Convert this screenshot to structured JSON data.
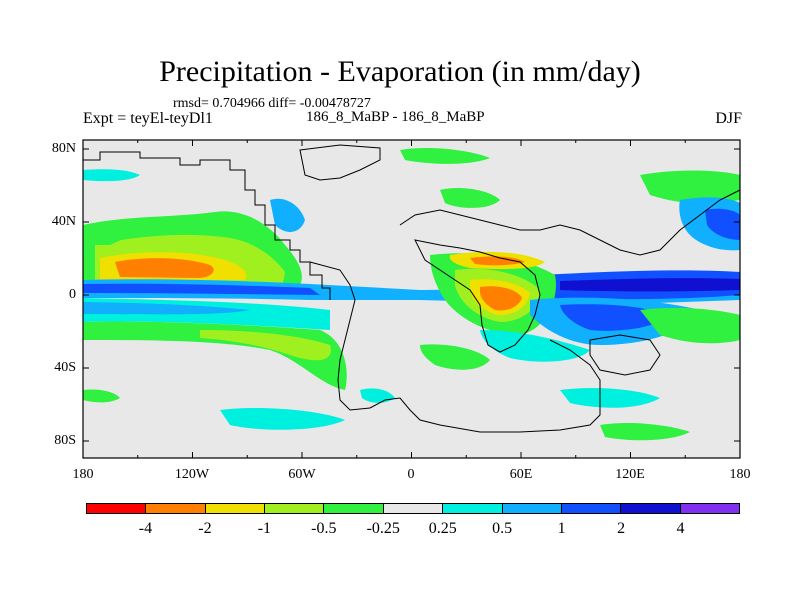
{
  "figure": {
    "title": "Precipitation - Evaporation (in mm/day)",
    "stats": "rmsd= 0.704966 diff= -0.00478727",
    "experiment": "Expt = teyEl-teyDl1",
    "subtitle": "186_8_MaBP - 186_8_MaBP",
    "season": "DJF"
  },
  "map": {
    "lat_ticks": [
      "80N",
      "40N",
      "0",
      "40S",
      "80S"
    ],
    "lon_ticks": [
      "180",
      "120W",
      "60W",
      "0",
      "60E",
      "120E",
      "180"
    ],
    "land_fill_color": "#e6e6e6",
    "coastline_color": "#000000"
  },
  "colorbar": {
    "colors": [
      "#ff0000",
      "#ff8000",
      "#f0e000",
      "#a0f020",
      "#30f040",
      "#e8e8e8",
      "#00f0e0",
      "#10b0ff",
      "#1050ff",
      "#1010d0",
      "#8030f0"
    ],
    "labels": [
      "-4",
      "-2",
      "-1",
      "-0.5",
      "-0.25",
      "0.25",
      "0.5",
      "1",
      "2",
      "4"
    ]
  }
}
